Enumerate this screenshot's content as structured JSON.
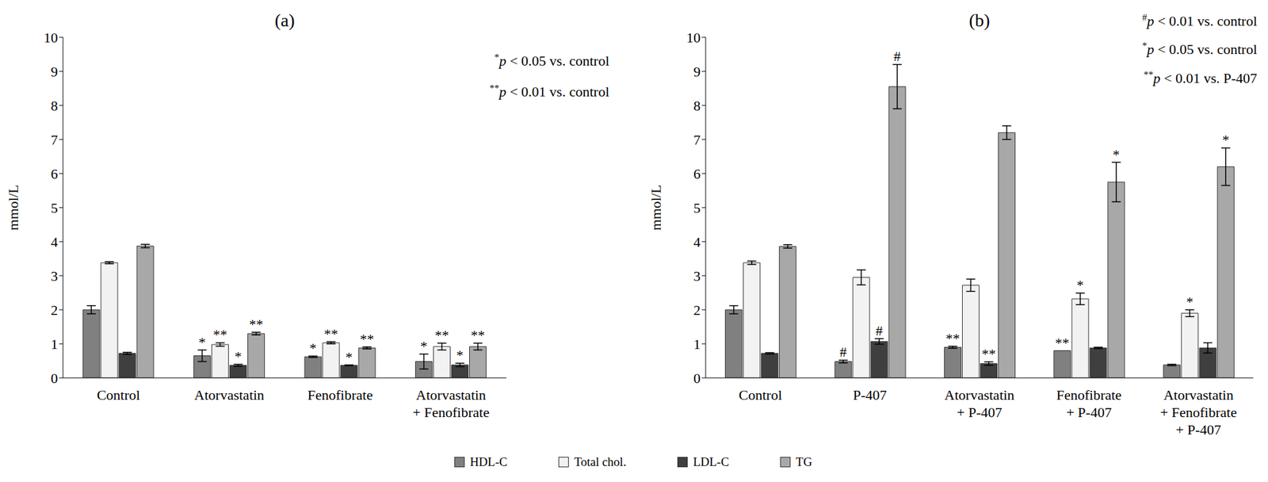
{
  "chart_data": [
    {
      "type": "bar",
      "title": "(a)",
      "y_label": "mmol/L",
      "categories": [
        "Control",
        "Atorvastatin",
        "Fenofibrate",
        "Atorvastatin + Fenofibrate"
      ],
      "ylim": [
        0,
        10
      ],
      "yticks": [
        0,
        1,
        2,
        3,
        4,
        5,
        6,
        7,
        8,
        9,
        10
      ],
      "grid": false,
      "legend": "bottom",
      "notes": [
        {
          "symbol": "*",
          "text": "p < 0.05 vs. control"
        },
        {
          "symbol": "**",
          "text": "p < 0.01 vs. control"
        }
      ],
      "series": [
        {
          "name": "HDL-C",
          "color": "#808080",
          "values": [
            2.0,
            0.65,
            0.62,
            0.48
          ],
          "errors": [
            0.12,
            0.17,
            0.02,
            0.22
          ],
          "markers": [
            null,
            "*",
            "*",
            "*"
          ]
        },
        {
          "name": "Total chol.",
          "color": "#f2f2f2",
          "values": [
            3.38,
            0.98,
            1.03,
            0.92
          ],
          "errors": [
            0.03,
            0.05,
            0.03,
            0.1
          ],
          "markers": [
            null,
            "**",
            "**",
            "**"
          ]
        },
        {
          "name": "LDL-C",
          "color": "#3f3f3f",
          "values": [
            0.72,
            0.37,
            0.37,
            0.38
          ],
          "errors": [
            0.03,
            0.03,
            0.01,
            0.05
          ],
          "markers": [
            null,
            "*",
            "*",
            "*"
          ]
        },
        {
          "name": "TG",
          "color": "#a8a8a8",
          "values": [
            3.87,
            1.3,
            0.88,
            0.92
          ],
          "errors": [
            0.05,
            0.04,
            0.03,
            0.1
          ],
          "markers": [
            null,
            "**",
            "**",
            "**"
          ]
        }
      ]
    },
    {
      "type": "bar",
      "title": "(b)",
      "y_label": "mmol/L",
      "categories": [
        "Control",
        "P-407",
        "Atorvastatin + P-407",
        "Fenofibrate + P-407",
        "Atorvastatin + Fenofibrate + P-407"
      ],
      "ylim": [
        0,
        10
      ],
      "yticks": [
        0,
        1,
        2,
        3,
        4,
        5,
        6,
        7,
        8,
        9,
        10
      ],
      "grid": false,
      "legend": "bottom",
      "notes": [
        {
          "symbol": "#",
          "text": "p < 0.01 vs. control"
        },
        {
          "symbol": "*",
          "text": "p < 0.05 vs. control"
        },
        {
          "symbol": "**",
          "text": "p < 0.01 vs. P-407"
        }
      ],
      "series": [
        {
          "name": "HDL-C",
          "color": "#808080",
          "values": [
            2.0,
            0.48,
            0.9,
            0.8,
            0.38
          ],
          "errors": [
            0.12,
            0.04,
            0.03,
            0.0,
            0.02
          ],
          "markers": [
            null,
            "#",
            "**",
            "**",
            null
          ]
        },
        {
          "name": "Total chol.",
          "color": "#f2f2f2",
          "values": [
            3.38,
            2.95,
            2.72,
            2.32,
            1.9
          ],
          "errors": [
            0.05,
            0.22,
            0.18,
            0.17,
            0.1
          ],
          "markers": [
            null,
            null,
            null,
            "*",
            "*"
          ]
        },
        {
          "name": "LDL-C",
          "color": "#3f3f3f",
          "values": [
            0.72,
            1.07,
            0.42,
            0.88,
            0.88
          ],
          "errors": [
            0.02,
            0.08,
            0.05,
            0.02,
            0.15
          ],
          "markers": [
            null,
            "#",
            "**",
            null,
            null
          ]
        },
        {
          "name": "TG",
          "color": "#a8a8a8",
          "values": [
            3.86,
            8.55,
            7.2,
            5.75,
            6.2
          ],
          "errors": [
            0.05,
            0.65,
            0.2,
            0.58,
            0.55
          ],
          "markers": [
            null,
            "#",
            null,
            "*",
            "*"
          ]
        }
      ]
    }
  ]
}
